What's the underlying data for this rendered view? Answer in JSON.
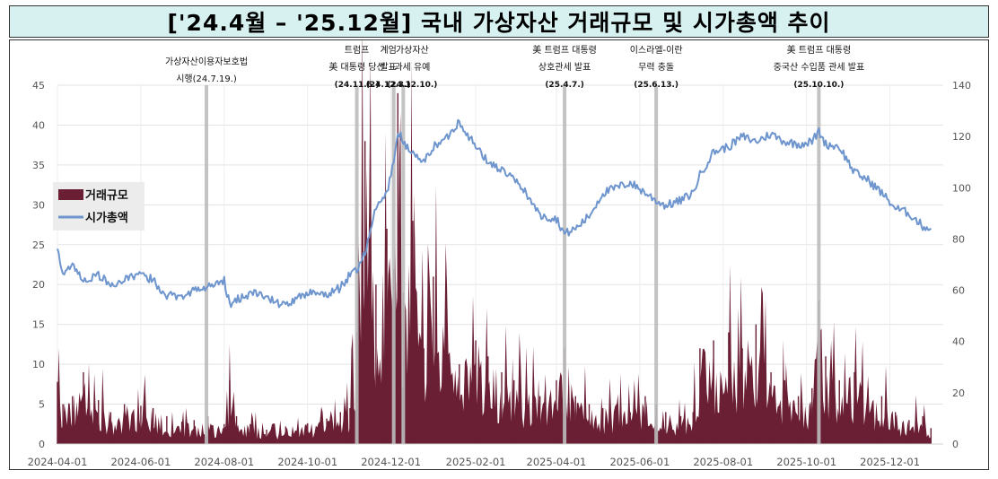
{
  "title": "['24.4월 – '25.12월] 국내 가상자산 거래규모 및 시가총액 추이",
  "chart_data": {
    "type": "bar+line",
    "left_axis": {
      "min": 0,
      "max": 45,
      "ticks": [
        "0",
        "5",
        "10",
        "15",
        "20",
        "25",
        "30",
        "35",
        "40",
        "45"
      ]
    },
    "right_axis": {
      "min": 0,
      "max": 140,
      "ticks": [
        "0",
        "20",
        "40",
        "60",
        "80",
        "100",
        "120",
        "140"
      ]
    },
    "x_ticks": [
      "2024-04-01",
      "2024-06-01",
      "2024-08-01",
      "2024-10-01",
      "2024-12-01",
      "2025-02-01",
      "2025-04-01",
      "2025-06-01",
      "2025-08-01",
      "2025-10-01",
      "2025-12-01"
    ],
    "grid": true,
    "legend_position": "left",
    "colors": {
      "volume": "#6b1f35",
      "market_cap": "#6e95cd",
      "event_line": "#bdbdbd"
    },
    "series": [
      {
        "name": "거래규모",
        "axis": "left",
        "kind": "area",
        "dates": [
          "2024-04-01",
          "2024-04-05",
          "2024-04-12",
          "2024-04-20",
          "2024-05-01",
          "2024-05-10",
          "2024-05-20",
          "2024-06-01",
          "2024-06-10",
          "2024-06-20",
          "2024-07-01",
          "2024-07-10",
          "2024-07-20",
          "2024-08-01",
          "2024-08-05",
          "2024-08-10",
          "2024-08-20",
          "2024-09-01",
          "2024-09-15",
          "2024-10-01",
          "2024-10-15",
          "2024-10-25",
          "2024-11-01",
          "2024-11-06",
          "2024-11-12",
          "2024-11-20",
          "2024-11-28",
          "2024-12-03",
          "2024-12-06",
          "2024-12-10",
          "2024-12-17",
          "2024-12-25",
          "2025-01-01",
          "2025-01-10",
          "2025-01-20",
          "2025-02-01",
          "2025-02-10",
          "2025-02-20",
          "2025-03-01",
          "2025-03-10",
          "2025-03-20",
          "2025-04-01",
          "2025-04-07",
          "2025-04-15",
          "2025-04-25",
          "2025-05-05",
          "2025-05-15",
          "2025-05-25",
          "2025-06-05",
          "2025-06-13",
          "2025-06-20",
          "2025-07-01",
          "2025-07-10",
          "2025-07-15",
          "2025-07-25",
          "2025-08-05",
          "2025-08-15",
          "2025-08-25",
          "2025-09-05",
          "2025-09-15",
          "2025-09-25",
          "2025-10-05",
          "2025-10-10",
          "2025-10-15",
          "2025-10-25",
          "2025-11-05",
          "2025-11-15",
          "2025-11-25",
          "2025-12-05",
          "2025-12-15",
          "2025-12-25",
          "2025-12-31"
        ],
        "values": [
          7.8,
          5,
          6,
          9,
          5.5,
          4,
          5,
          4.8,
          4.5,
          3.5,
          2.8,
          3,
          3.5,
          2.5,
          8,
          3.5,
          2.5,
          1.8,
          2.2,
          2.6,
          3.2,
          4,
          4.5,
          14,
          38,
          20,
          27,
          22,
          44,
          19,
          28,
          12,
          21,
          16,
          10,
          13,
          11,
          9,
          8,
          7,
          6,
          8,
          12,
          6,
          5,
          4.5,
          5,
          4,
          6,
          5,
          4,
          3.5,
          4,
          12,
          13,
          14,
          12,
          15,
          9,
          8,
          6,
          7,
          18,
          11,
          8,
          9,
          7,
          6,
          4,
          3,
          3.5,
          2
        ]
      },
      {
        "name": "시가총액",
        "axis": "right",
        "kind": "line",
        "dates": [
          "2024-04-01",
          "2024-04-05",
          "2024-04-12",
          "2024-04-20",
          "2024-05-01",
          "2024-05-10",
          "2024-05-20",
          "2024-06-01",
          "2024-06-10",
          "2024-06-20",
          "2024-07-01",
          "2024-07-10",
          "2024-07-20",
          "2024-08-01",
          "2024-08-05",
          "2024-08-15",
          "2024-08-25",
          "2024-09-05",
          "2024-09-15",
          "2024-09-25",
          "2024-10-05",
          "2024-10-15",
          "2024-10-25",
          "2024-11-01",
          "2024-11-06",
          "2024-11-12",
          "2024-11-20",
          "2024-11-28",
          "2024-12-03",
          "2024-12-06",
          "2024-12-10",
          "2024-12-17",
          "2024-12-25",
          "2025-01-01",
          "2025-01-10",
          "2025-01-20",
          "2025-02-01",
          "2025-02-10",
          "2025-02-20",
          "2025-03-01",
          "2025-03-10",
          "2025-03-20",
          "2025-04-01",
          "2025-04-07",
          "2025-04-15",
          "2025-04-25",
          "2025-05-05",
          "2025-05-15",
          "2025-05-25",
          "2025-06-05",
          "2025-06-13",
          "2025-06-20",
          "2025-07-01",
          "2025-07-10",
          "2025-07-15",
          "2025-07-25",
          "2025-08-05",
          "2025-08-15",
          "2025-08-25",
          "2025-09-05",
          "2025-09-15",
          "2025-09-25",
          "2025-10-05",
          "2025-10-10",
          "2025-10-15",
          "2025-10-25",
          "2025-11-05",
          "2025-11-15",
          "2025-11-25",
          "2025-12-05",
          "2025-12-15",
          "2025-12-25",
          "2025-12-31"
        ],
        "values": [
          75,
          67,
          70,
          64,
          66,
          62,
          64,
          66,
          64,
          58,
          58,
          60,
          61,
          64,
          54,
          58,
          59,
          56,
          54,
          57,
          60,
          58,
          61,
          66,
          68,
          75,
          92,
          98,
          110,
          122,
          118,
          113,
          110,
          116,
          119,
          126,
          116,
          110,
          107,
          103,
          98,
          89,
          88,
          82,
          84,
          89,
          98,
          100,
          102,
          98,
          95,
          93,
          95,
          98,
          105,
          114,
          116,
          120,
          118,
          121,
          118,
          117,
          118,
          122,
          117,
          116,
          106,
          103,
          98,
          92,
          90,
          85,
          84
        ]
      }
    ],
    "legend": [
      {
        "label": "거래규모"
      },
      {
        "label": "시가총액"
      }
    ],
    "events": [
      {
        "date": "2024-07-19",
        "lines": [
          "가상자산이용자보호법",
          "시행(24.7.19.)"
        ]
      },
      {
        "date": "2024-11-06",
        "lines": [
          "트럼프",
          "美 대통령 당선",
          "(24.11.6.)"
        ]
      },
      {
        "date": "2024-12-03",
        "lines": [
          "계엄",
          "발표",
          "(24.12.3.)"
        ]
      },
      {
        "date": "2024-12-10",
        "lines": [
          "가상자산",
          "과세 유예",
          "(24.12.10.)"
        ]
      },
      {
        "date": "2025-04-07",
        "lines": [
          "美 트럼프 대통령",
          "상호관세 발표",
          "(25.4.7.)"
        ]
      },
      {
        "date": "2025-06-13",
        "lines": [
          "이스라엘-이란",
          "무력 충돌",
          "(25.6.13.)"
        ]
      },
      {
        "date": "2025-10-10",
        "lines": [
          "美 트럼프 대통령",
          "중국산 수입품 관세 발표",
          "(25.10.10.)"
        ]
      }
    ]
  }
}
